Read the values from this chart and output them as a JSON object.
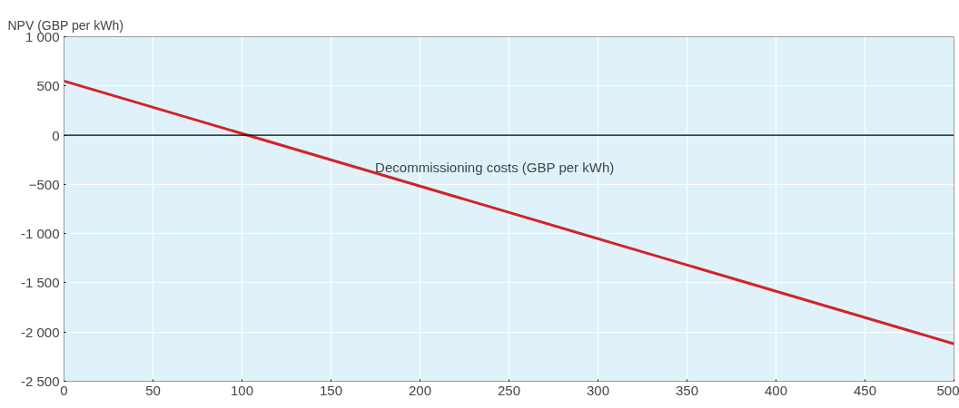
{
  "chart_data": {
    "type": "line",
    "xlabel": "Decommissioning costs (GBP per kWh)",
    "ylabel": "NPV (GBP per kWh)",
    "x": [
      0,
      500
    ],
    "series": [
      {
        "color": "#d2232a",
        "values": [
          550,
          -2120
        ]
      }
    ],
    "xlim": [
      0,
      500
    ],
    "xticks": [
      0,
      50,
      100,
      150,
      200,
      250,
      300,
      350,
      400,
      450,
      500
    ],
    "ylim": [
      -2500,
      1000
    ],
    "yticks": [
      {
        "value": -2500,
        "label": "-2 500"
      },
      {
        "value": -2000,
        "label": "-2 000"
      },
      {
        "value": -1500,
        "label": "-1 500"
      },
      {
        "value": -1000,
        "label": "-1 000"
      },
      -500,
      0,
      500,
      {
        "value": 1000,
        "label": "1 000"
      }
    ],
    "ref_lines": [
      {
        "axis": "y",
        "value": 0,
        "color": "#000000"
      }
    ],
    "grid": true,
    "marker": "none",
    "line_style": "solid"
  }
}
